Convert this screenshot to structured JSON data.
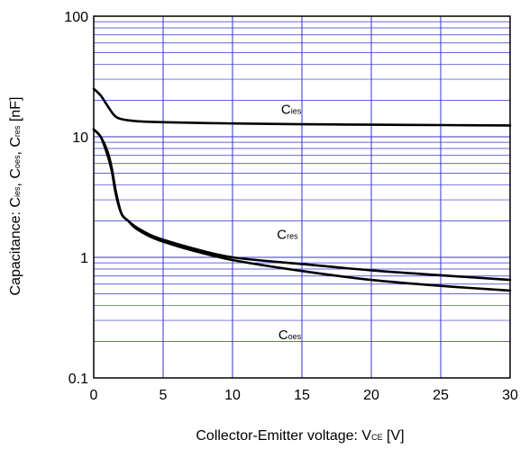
{
  "chart_data": {
    "type": "line",
    "xlabel": {
      "main": "Collector-Emitter voltage: V",
      "sub": "CE",
      "unit": " [V]"
    },
    "ylabel": {
      "main": "Capacitance: C",
      "parts": [
        {
          "text": "C",
          "sub": "ies"
        },
        {
          "text": ", C",
          "sub": "oes"
        },
        {
          "text": ", C",
          "sub": "res"
        }
      ],
      "unit": " [nF]"
    },
    "xlim": [
      0,
      30
    ],
    "ylim": [
      0.1,
      100
    ],
    "y_scale": "log",
    "x_ticks": [
      0,
      5,
      10,
      15,
      20,
      25,
      30
    ],
    "x_tick_labels": [
      "0",
      "5",
      "10",
      "15",
      "20",
      "25",
      "30"
    ],
    "y_ticks": [
      0.1,
      1,
      10,
      100
    ],
    "y_tick_labels": [
      "0.1",
      "1",
      "10",
      "100"
    ],
    "grid": true,
    "grid_color": "#3333cc",
    "line_color": "#000000",
    "series": [
      {
        "name": "Cies",
        "label_text": "C",
        "label_sub": "ies",
        "x": [
          0,
          0.5,
          1.0,
          1.5,
          2.0,
          3,
          5,
          10,
          15,
          20,
          25,
          30
        ],
        "y": [
          25,
          22,
          18,
          15,
          14,
          13.5,
          13.2,
          12.9,
          12.7,
          12.6,
          12.5,
          12.4
        ]
      },
      {
        "name": "Cres",
        "label_text": "C",
        "label_sub": "res",
        "x": [
          0,
          0.5,
          1.0,
          1.3,
          1.6,
          2.0,
          2.5,
          3,
          4,
          5,
          7,
          10,
          15,
          20,
          25,
          30
        ],
        "y": [
          11.5,
          10,
          7.5,
          5.5,
          3.5,
          2.3,
          2.0,
          1.8,
          1.55,
          1.4,
          1.2,
          1.0,
          0.88,
          0.78,
          0.71,
          0.65
        ]
      },
      {
        "name": "Coes",
        "label_text": "C",
        "label_sub": "oes",
        "x": [
          0,
          0.5,
          1.0,
          1.3,
          1.6,
          2.0,
          2.5,
          3,
          4,
          5,
          7,
          10,
          15,
          20,
          25,
          30
        ],
        "y": [
          11.5,
          10,
          7,
          5.2,
          3.3,
          2.3,
          2.0,
          1.75,
          1.5,
          1.35,
          1.15,
          0.95,
          0.77,
          0.65,
          0.58,
          0.53
        ]
      }
    ],
    "annotations": [
      {
        "series": "Cies",
        "text": "C",
        "sub": "ies",
        "x": 13.5,
        "y": 15.5
      },
      {
        "series": "Cres",
        "text": "C",
        "sub": "res",
        "x": 13.2,
        "y": 1.42
      },
      {
        "series": "Coes",
        "text": "C",
        "sub": "oes",
        "x": 13.3,
        "y": 0.21
      }
    ]
  }
}
